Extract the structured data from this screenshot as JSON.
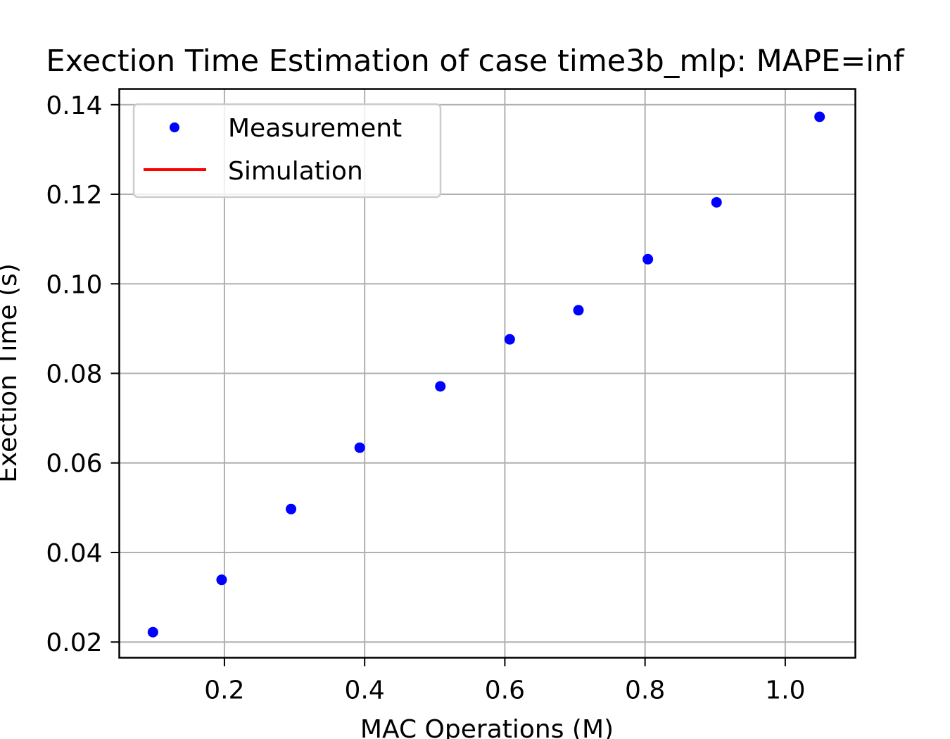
{
  "chart_data": {
    "type": "scatter",
    "title": "Exection Time Estimation of case time3b_mlp: MAPE=inf",
    "xlabel": "MAC Operations (M)",
    "ylabel": "Exection Time (s)",
    "xlim": [
      0.05,
      1.1
    ],
    "ylim": [
      0.0165,
      0.1435
    ],
    "x_ticks": [
      0.2,
      0.4,
      0.6,
      0.8,
      1.0
    ],
    "x_tick_labels": [
      "0.2",
      "0.4",
      "0.6",
      "0.8",
      "1.0"
    ],
    "y_ticks": [
      0.02,
      0.04,
      0.06,
      0.08,
      0.1,
      0.12,
      0.14
    ],
    "y_tick_labels": [
      "0.02",
      "0.04",
      "0.06",
      "0.08",
      "0.10",
      "0.12",
      "0.14"
    ],
    "grid": true,
    "legend_position": "upper-left",
    "series": [
      {
        "name": "Measurement",
        "marker": "dot",
        "color": "#0000ff",
        "x": [
          0.098,
          0.196,
          0.295,
          0.393,
          0.508,
          0.607,
          0.705,
          0.804,
          0.902,
          1.049
        ],
        "y": [
          0.0222,
          0.0339,
          0.0497,
          0.0634,
          0.0771,
          0.0876,
          0.0941,
          0.1055,
          0.1182,
          0.1373
        ]
      },
      {
        "name": "Simulation",
        "marker": "line",
        "color": "#ff0000",
        "x": [],
        "y": []
      }
    ]
  }
}
